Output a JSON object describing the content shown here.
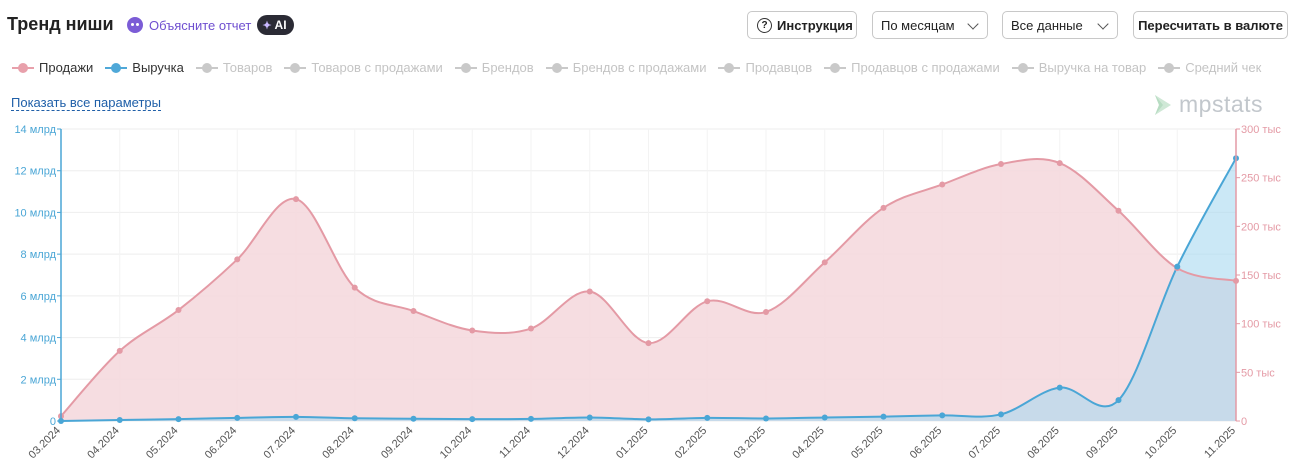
{
  "header": {
    "title": "Тренд ниши",
    "explain_label": "Объясните отчет",
    "ai_badge": "AI"
  },
  "toolbar": {
    "help_label": "Инструкция",
    "period_value": "По месяцам",
    "data_value": "Все данные",
    "currency_label": "Пересчитать в валюте"
  },
  "legend": [
    {
      "label": "Продажи",
      "active": true,
      "color": "#e8a0ab"
    },
    {
      "label": "Выручка",
      "active": true,
      "color": "#4fa8d8"
    },
    {
      "label": "Товаров",
      "active": false
    },
    {
      "label": "Товаров с продажами",
      "active": false
    },
    {
      "label": "Брендов",
      "active": false
    },
    {
      "label": "Брендов с продажами",
      "active": false
    },
    {
      "label": "Продавцов",
      "active": false
    },
    {
      "label": "Продавцов с продажами",
      "active": false
    },
    {
      "label": "Выручка на товар",
      "active": false
    },
    {
      "label": "Средний чек",
      "active": false
    }
  ],
  "show_all_label": "Показать все параметры",
  "logo_text": "mpstats",
  "colors": {
    "sales": "#e49aa5",
    "sales_fill": "#f5d7dc",
    "revenue": "#4aa6d6",
    "revenue_fill": "#a9d8f0",
    "inactive": "#c9c9c9"
  },
  "chart_data": {
    "type": "area",
    "categories": [
      "03.2024",
      "04.2024",
      "05.2024",
      "06.2024",
      "07.2024",
      "08.2024",
      "09.2024",
      "10.2024",
      "11.2024",
      "12.2024",
      "01.2025",
      "02.2025",
      "03.2025",
      "04.2025",
      "05.2025",
      "06.2025",
      "07.2025",
      "08.2025",
      "09.2025",
      "10.2025",
      "11.2025"
    ],
    "series": [
      {
        "name": "Продажи",
        "axis": "right",
        "values": [
          5000,
          72000,
          114000,
          166000,
          228000,
          137000,
          113000,
          93000,
          95000,
          133000,
          80000,
          123000,
          112000,
          163000,
          219000,
          243000,
          264000,
          265000,
          216000,
          157000,
          144000
        ]
      },
      {
        "name": "Выручка",
        "axis": "left",
        "values": [
          0,
          0.05,
          0.09,
          0.15,
          0.2,
          0.13,
          0.11,
          0.09,
          0.1,
          0.17,
          0.08,
          0.15,
          0.12,
          0.17,
          0.21,
          0.27,
          0.32,
          1.6,
          1.0,
          7.4,
          12.6
        ]
      }
    ],
    "left_axis": {
      "ylim": [
        0,
        14
      ],
      "ticks": [
        0,
        2,
        4,
        6,
        8,
        10,
        12,
        14
      ],
      "tick_labels": [
        "0",
        "2 млрд",
        "4 млрд",
        "6 млрд",
        "8 млрд",
        "10 млрд",
        "12 млрд",
        "14 млрд"
      ]
    },
    "right_axis": {
      "ylim": [
        0,
        300000
      ],
      "ticks": [
        0,
        50000,
        100000,
        150000,
        200000,
        250000,
        300000
      ],
      "tick_labels": [
        "0",
        "50 тыс",
        "100 тыс",
        "150 тыс",
        "200 тыс",
        "250 тыс",
        "300 тыс"
      ]
    },
    "grid": true
  }
}
